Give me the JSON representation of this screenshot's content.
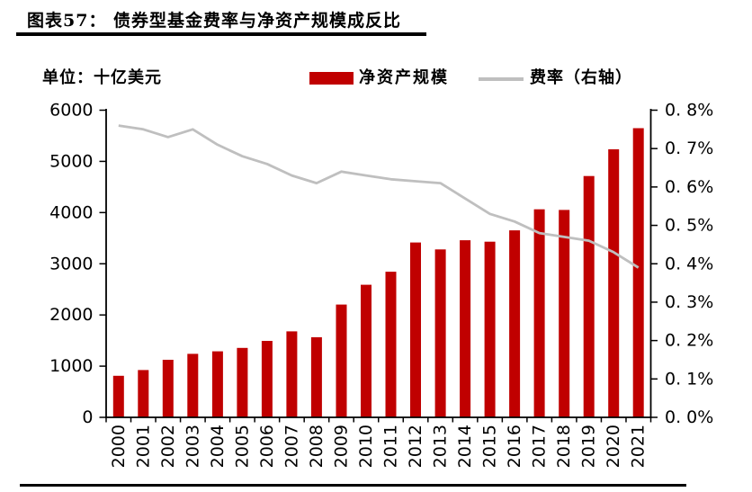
{
  "header": {
    "title": "图表57：  债券型基金费率与净资产规模成反比"
  },
  "chart": {
    "unit_label": "单位：十亿美元"
  },
  "legend": {
    "bar_label": "净资产规模",
    "line_label": "费率（右轴）"
  },
  "colors": {
    "bar": "#C00000",
    "line": "#BFBFBF",
    "axis": "#000000",
    "rule": "#000000"
  },
  "chart_data": {
    "type": "bar+line combo",
    "title": "债券型基金费率与净资产规模成反比",
    "unit": "十亿美元",
    "legend_position": "top",
    "grid": false,
    "categories": [
      "2000",
      "2001",
      "2002",
      "2003",
      "2004",
      "2005",
      "2006",
      "2007",
      "2008",
      "2009",
      "2010",
      "2011",
      "2012",
      "2013",
      "2014",
      "2015",
      "2016",
      "2017",
      "2018",
      "2019",
      "2020",
      "2021"
    ],
    "series": [
      {
        "name": "净资产规模",
        "type": "bar",
        "axis": "left",
        "color": "#C00000",
        "values": [
          811,
          925,
          1125,
          1240,
          1290,
          1357,
          1494,
          1679,
          1566,
          2203,
          2589,
          2844,
          3416,
          3281,
          3459,
          3432,
          3652,
          4063,
          4052,
          4714,
          5236,
          5648
        ]
      },
      {
        "name": "费率（右轴）",
        "type": "line",
        "axis": "right",
        "color": "#BFBFBF",
        "values": [
          0.76,
          0.75,
          0.73,
          0.75,
          0.71,
          0.68,
          0.66,
          0.63,
          0.61,
          0.64,
          0.63,
          0.62,
          0.615,
          0.61,
          0.57,
          0.53,
          0.51,
          0.48,
          0.47,
          0.46,
          0.43,
          0.39
        ]
      }
    ],
    "left_axis": {
      "min": 0,
      "max": 6000,
      "step": 1000,
      "tick_labels": [
        "6000",
        "5000",
        "4000",
        "3000",
        "2000",
        "1000",
        "0"
      ]
    },
    "right_axis": {
      "min": 0,
      "max": 0.8,
      "step": 0.1,
      "tick_labels": [
        "0. 8%",
        "0. 7%",
        "0. 6%",
        "0. 5%",
        "0. 4%",
        "0. 3%",
        "0. 2%",
        "0. 1%",
        "0. 0%"
      ]
    }
  }
}
